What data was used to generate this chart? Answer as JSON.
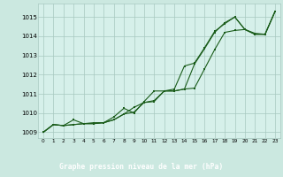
{
  "title": "Graphe pression niveau de la mer (hPa)",
  "bg_color": "#cbe8e0",
  "plot_bg": "#d6f0ea",
  "grid_color": "#a8c8c0",
  "line_color": "#1a5c1a",
  "label_bg": "#2d6e2d",
  "label_fg": "#ffffff",
  "xlim": [
    -0.5,
    23.5
  ],
  "ylim": [
    1008.7,
    1015.7
  ],
  "yticks": [
    1009,
    1010,
    1011,
    1012,
    1013,
    1014,
    1015
  ],
  "xticks": [
    0,
    1,
    2,
    3,
    4,
    5,
    6,
    7,
    8,
    9,
    10,
    11,
    12,
    13,
    14,
    15,
    16,
    17,
    18,
    19,
    20,
    21,
    22,
    23
  ],
  "line1_y": [
    1009.0,
    1009.4,
    1009.35,
    1009.4,
    1009.45,
    1009.45,
    1009.5,
    1009.65,
    1009.95,
    1010.05,
    1010.55,
    1010.65,
    1011.15,
    1011.15,
    1011.25,
    1011.3,
    1012.3,
    1013.3,
    1014.2,
    1014.3,
    1014.35,
    1014.1,
    1014.1,
    1015.3
  ],
  "line2_y": [
    1009.0,
    1009.4,
    1009.35,
    1009.65,
    1009.45,
    1009.5,
    1009.5,
    1009.8,
    1010.25,
    1010.0,
    1010.6,
    1011.15,
    1011.15,
    1011.25,
    1012.45,
    1012.6,
    1013.4,
    1014.25,
    1014.65,
    1015.0,
    1014.35,
    1014.15,
    1014.1,
    1015.3
  ],
  "line3_y": [
    1009.0,
    1009.4,
    1009.35,
    1009.4,
    1009.45,
    1009.45,
    1009.5,
    1009.65,
    1009.95,
    1010.3,
    1010.55,
    1010.6,
    1011.15,
    1011.15,
    1011.25,
    1012.55,
    1013.35,
    1014.2,
    1014.7,
    1015.0,
    1014.35,
    1014.1,
    1014.1,
    1015.3
  ]
}
